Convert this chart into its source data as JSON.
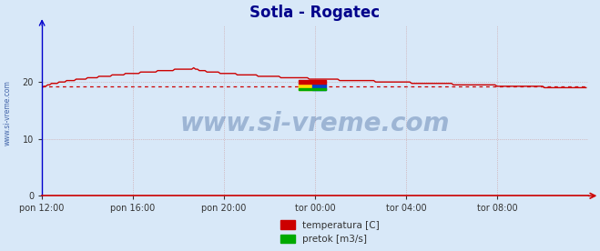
{
  "title": "Sotla - Rogatec",
  "title_color": "#00008b",
  "title_fontsize": 12,
  "background_color": "#d8e8f8",
  "plot_bg_color": "#d8e8f8",
  "xlim": [
    0,
    288
  ],
  "ylim": [
    0,
    30
  ],
  "yticks": [
    0,
    10,
    20
  ],
  "xtick_labels": [
    "pon 12:00",
    "pon 16:00",
    "pon 20:00",
    "tor 00:00",
    "tor 04:00",
    "tor 08:00"
  ],
  "xtick_positions": [
    0,
    48,
    96,
    144,
    192,
    240
  ],
  "grid_color": "#cc9999",
  "grid_linestyle": ":",
  "temp_color": "#cc0000",
  "flow_color": "#00aa00",
  "avg_line_color": "#cc0000",
  "avg_line_value": 19.3,
  "watermark": "www.si-vreme.com",
  "watermark_color": "#5577aa",
  "watermark_alpha": 0.45,
  "watermark_fontsize": 20,
  "ylabel_text": "www.si-vreme.com",
  "ylabel_color": "#4466aa",
  "legend_temp_label": "temperatura [C]",
  "legend_flow_label": "pretok [m3/s]",
  "flow_data_value": 0.05,
  "num_points": 288,
  "spine_bottom_color": "#cc0000",
  "spine_left_color": "#0000cc",
  "tick_color": "#333333",
  "tick_labelsize": 7
}
